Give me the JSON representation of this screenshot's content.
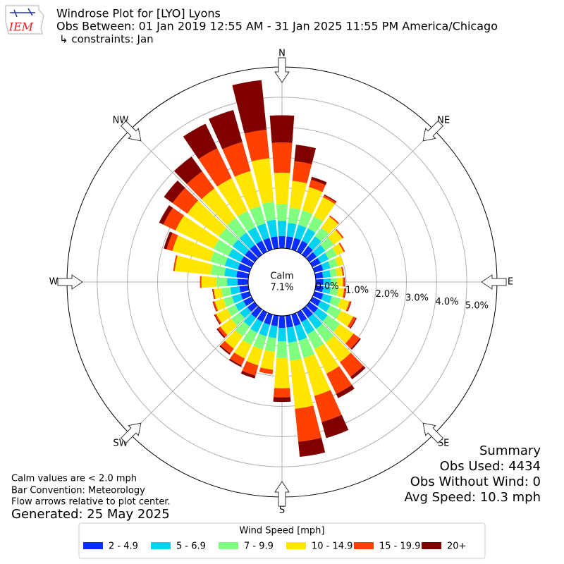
{
  "chart_data": {
    "type": "windrose",
    "logo_text": "IEM",
    "title": "Windrose Plot for [LYO] Lyons",
    "subtitle": "Obs Between: 01 Jan 2019 12:55 AM - 31 Jan 2025 11:55 PM America/Chicago",
    "constraints": "↳ constraints: Jan",
    "x": [
      0,
      10,
      20,
      30,
      40,
      50,
      60,
      70,
      80,
      90,
      100,
      110,
      120,
      130,
      140,
      150,
      160,
      170,
      180,
      190,
      200,
      210,
      220,
      230,
      240,
      250,
      260,
      270,
      280,
      290,
      300,
      310,
      320,
      330,
      340,
      350
    ],
    "xlim": [
      0,
      360
    ],
    "xticks": [
      {
        "value": 0,
        "label": "N"
      },
      {
        "value": 45,
        "label": "NE"
      },
      {
        "value": 90,
        "label": "E"
      },
      {
        "value": 135,
        "label": "SE"
      },
      {
        "value": 180,
        "label": "S"
      },
      {
        "value": 225,
        "label": "SW"
      },
      {
        "value": 270,
        "label": "W"
      },
      {
        "value": 315,
        "label": "NW"
      }
    ],
    "ylim": [
      0,
      6
    ],
    "yticks": [
      {
        "value": 0,
        "label": "0.0%"
      },
      {
        "value": 1,
        "label": "1.0%"
      },
      {
        "value": 2,
        "label": "2.0%"
      },
      {
        "value": 3,
        "label": "3.0%"
      },
      {
        "value": 4,
        "label": "4.0%"
      },
      {
        "value": 5,
        "label": "5.0%"
      }
    ],
    "grid": true,
    "calm": {
      "label": "Calm",
      "text": "7.1%"
    },
    "legend_title": "Wind Speed [mph]",
    "series": [
      {
        "name": "2 - 4.9",
        "color": "#0a2dff",
        "values": [
          0.4,
          0.4,
          0.4,
          0.4,
          0.35,
          0.3,
          0.3,
          0.3,
          0.25,
          0.25,
          0.25,
          0.3,
          0.3,
          0.35,
          0.35,
          0.35,
          0.4,
          0.4,
          0.4,
          0.35,
          0.35,
          0.35,
          0.35,
          0.3,
          0.3,
          0.3,
          0.3,
          0.35,
          0.4,
          0.4,
          0.4,
          0.4,
          0.4,
          0.4,
          0.4,
          0.4
        ]
      },
      {
        "name": "5 - 6.9",
        "color": "#00d4f0",
        "values": [
          0.5,
          0.45,
          0.45,
          0.45,
          0.4,
          0.35,
          0.3,
          0.25,
          0.25,
          0.25,
          0.25,
          0.3,
          0.35,
          0.4,
          0.45,
          0.45,
          0.5,
          0.5,
          0.45,
          0.4,
          0.4,
          0.4,
          0.35,
          0.3,
          0.3,
          0.3,
          0.3,
          0.35,
          0.4,
          0.45,
          0.45,
          0.5,
          0.5,
          0.5,
          0.5,
          0.55
        ]
      },
      {
        "name": "7 - 9.9",
        "color": "#80ff80",
        "values": [
          0.55,
          0.5,
          0.5,
          0.45,
          0.35,
          0.35,
          0.3,
          0.25,
          0.2,
          0.2,
          0.25,
          0.3,
          0.4,
          0.5,
          0.55,
          0.55,
          0.6,
          0.6,
          0.55,
          0.45,
          0.45,
          0.45,
          0.4,
          0.35,
          0.3,
          0.3,
          0.3,
          0.35,
          0.45,
          0.5,
          0.55,
          0.55,
          0.6,
          0.6,
          0.6,
          0.6
        ]
      },
      {
        "name": "10 - 14.9",
        "color": "#ffe600",
        "values": [
          1.05,
          0.9,
          0.8,
          0.7,
          0.45,
          0.35,
          0.25,
          0.2,
          0.2,
          0.2,
          0.2,
          0.3,
          0.45,
          0.55,
          0.8,
          0.9,
          1.3,
          1.6,
          1.0,
          0.6,
          0.55,
          0.5,
          0.5,
          0.45,
          0.4,
          0.3,
          0.25,
          0.5,
          1.2,
          1.3,
          1.4,
          1.3,
          1.2,
          1.2,
          1.2,
          1.45
        ]
      },
      {
        "name": "15 - 19.9",
        "color": "#ff4000",
        "values": [
          1.0,
          0.65,
          0.25,
          0.07,
          0.05,
          0.05,
          0.05,
          0,
          0.05,
          0.05,
          0.05,
          0.05,
          0.1,
          0.25,
          0.6,
          0.75,
          0.9,
          1.1,
          0.3,
          0.15,
          0.35,
          0.25,
          0.2,
          0.1,
          0.05,
          0.05,
          0.03,
          0.05,
          0.05,
          0.2,
          0.45,
          0.6,
          0.7,
          1.1,
          1.0,
          0.95
        ]
      },
      {
        "name": "20+",
        "color": "#800000",
        "values": [
          0.9,
          0.55,
          0.1,
          0.03,
          0,
          0,
          0,
          0,
          0,
          0.02,
          0.02,
          0.02,
          0.03,
          0.05,
          0.1,
          0.15,
          0.55,
          0.5,
          0.15,
          0,
          0.1,
          0.05,
          0.05,
          0.05,
          0.03,
          0.02,
          0.02,
          0,
          0,
          0.1,
          0.15,
          0.35,
          0.6,
          0.9,
          1.1,
          1.65
        ]
      }
    ],
    "notes": [
      "Calm values are < 2.0 mph",
      "Bar Convention: Meteorology",
      "Flow arrows relative to plot center."
    ],
    "generated": "Generated: 25 May 2025",
    "summary": [
      "Summary",
      "Obs Used: 4434",
      "Obs Without Wind: 0",
      "Avg Speed: 10.3 mph"
    ]
  }
}
